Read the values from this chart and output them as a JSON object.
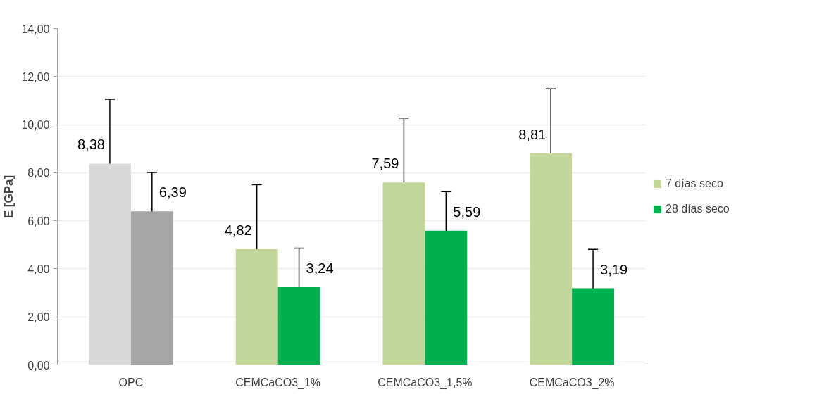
{
  "chart_data": {
    "type": "bar",
    "ylabel": "E [GPa]",
    "categories": [
      "OPC",
      "CEMCaCO3_1%",
      "CEMCaCO3_1,5%",
      "CEMCaCO3_2%"
    ],
    "series": [
      {
        "name": "7 días seco",
        "color": "#c4d79b",
        "colors": [
          "#d9d9d9",
          "#c4d79b",
          "#c4d79b",
          "#c4d79b"
        ],
        "values": [
          8.38,
          4.82,
          7.59,
          8.81
        ],
        "errors": [
          2.68,
          2.68,
          2.68,
          2.68
        ],
        "value_labels": [
          "8,38",
          "4,82",
          "7,59",
          "8,81"
        ]
      },
      {
        "name": "28 días seco",
        "color": "#00b050",
        "colors": [
          "#a6a6a6",
          "#00b050",
          "#00b050",
          "#00b050"
        ],
        "values": [
          6.39,
          3.24,
          5.59,
          3.19
        ],
        "errors": [
          1.62,
          1.62,
          1.62,
          1.62
        ],
        "value_labels": [
          "6,39",
          "3,24",
          "5,59",
          "3,19"
        ]
      }
    ],
    "ylim": [
      0,
      14
    ],
    "yticks": [
      {
        "value": 0,
        "label": "0,00"
      },
      {
        "value": 2,
        "label": "2,00"
      },
      {
        "value": 4,
        "label": "4,00"
      },
      {
        "value": 6,
        "label": "6,00"
      },
      {
        "value": 8,
        "label": "8,00"
      },
      {
        "value": 10,
        "label": "10,00"
      },
      {
        "value": 12,
        "label": "12,00"
      },
      {
        "value": 14,
        "label": "14,00"
      }
    ],
    "grid": "y",
    "legend": "right"
  }
}
